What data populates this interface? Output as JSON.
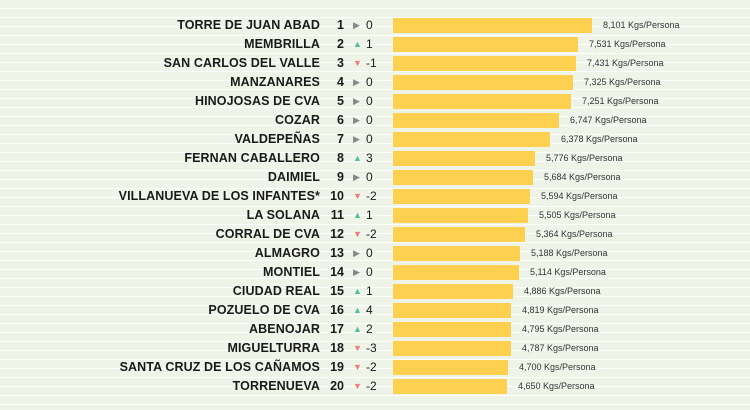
{
  "colors": {
    "bar": "#fdd14f",
    "up": "#4fbf9f",
    "down": "#f27c7c",
    "same": "#888888"
  },
  "chart_data": {
    "type": "bar",
    "orientation": "horizontal",
    "value_suffix": " Kgs/Persona",
    "rows": [
      {
        "name": "TORRE DE JUAN ABAD",
        "rank": "1",
        "trend": "same",
        "change": "0",
        "value": 8101,
        "label": "8,101 Kgs/Persona"
      },
      {
        "name": "MEMBRILLA",
        "rank": "2",
        "trend": "up",
        "change": "1",
        "value": 7531,
        "label": "7,531 Kgs/Persona"
      },
      {
        "name": "SAN CARLOS DEL VALLE",
        "rank": "3",
        "trend": "down",
        "change": "-1",
        "value": 7431,
        "label": "7,431 Kgs/Persona"
      },
      {
        "name": "MANZANARES",
        "rank": "4",
        "trend": "same",
        "change": "0",
        "value": 7325,
        "label": "7,325 Kgs/Persona"
      },
      {
        "name": "HINOJOSAS DE CVA",
        "rank": "5",
        "trend": "same",
        "change": "0",
        "value": 7251,
        "label": "7,251 Kgs/Persona"
      },
      {
        "name": "COZAR",
        "rank": "6",
        "trend": "same",
        "change": "0",
        "value": 6747,
        "label": "6,747 Kgs/Persona"
      },
      {
        "name": "VALDEPEÑAS",
        "rank": "7",
        "trend": "same",
        "change": "0",
        "value": 6378,
        "label": "6,378 Kgs/Persona"
      },
      {
        "name": "FERNAN CABALLERO",
        "rank": "8",
        "trend": "up",
        "change": "3",
        "value": 5776,
        "label": "5,776 Kgs/Persona"
      },
      {
        "name": "DAIMIEL",
        "rank": "9",
        "trend": "same",
        "change": "0",
        "value": 5684,
        "label": "5,684 Kgs/Persona"
      },
      {
        "name": "VILLANUEVA DE LOS INFANTES*",
        "rank": "10",
        "trend": "down",
        "change": "-2",
        "value": 5594,
        "label": "5,594 Kgs/Persona"
      },
      {
        "name": "LA SOLANA",
        "rank": "11",
        "trend": "up",
        "change": "1",
        "value": 5505,
        "label": "5,505 Kgs/Persona"
      },
      {
        "name": "CORRAL DE CVA",
        "rank": "12",
        "trend": "down",
        "change": "-2",
        "value": 5364,
        "label": "5,364 Kgs/Persona"
      },
      {
        "name": "ALMAGRO",
        "rank": "13",
        "trend": "same",
        "change": "0",
        "value": 5188,
        "label": "5,188 Kgs/Persona"
      },
      {
        "name": "MONTIEL",
        "rank": "14",
        "trend": "same",
        "change": "0",
        "value": 5114,
        "label": "5,114 Kgs/Persona"
      },
      {
        "name": "CIUDAD REAL",
        "rank": "15",
        "trend": "up",
        "change": "1",
        "value": 4886,
        "label": "4,886 Kgs/Persona"
      },
      {
        "name": "POZUELO DE CVA",
        "rank": "16",
        "trend": "up",
        "change": "4",
        "value": 4819,
        "label": "4,819 Kgs/Persona"
      },
      {
        "name": "ABENOJAR",
        "rank": "17",
        "trend": "up",
        "change": "2",
        "value": 4795,
        "label": "4,795 Kgs/Persona"
      },
      {
        "name": "MIGUELTURRA",
        "rank": "18",
        "trend": "down",
        "change": "-3",
        "value": 4787,
        "label": "4,787 Kgs/Persona"
      },
      {
        "name": "SANTA CRUZ DE LOS CAÑAMOS",
        "rank": "19",
        "trend": "down",
        "change": "-2",
        "value": 4700,
        "label": "4,700 Kgs/Persona"
      },
      {
        "name": "TORRENUEVA",
        "rank": "20",
        "trend": "down",
        "change": "-2",
        "value": 4650,
        "label": "4,650 Kgs/Persona"
      }
    ]
  }
}
